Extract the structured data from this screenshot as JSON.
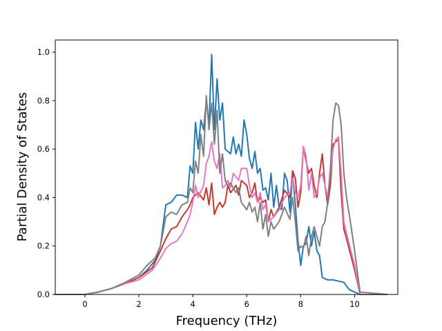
{
  "chart_data": {
    "type": "line",
    "title": "",
    "xlabel": "Frequency (THz)",
    "ylabel": "Partial Density of States",
    "xlim": [
      -1.1,
      11.6
    ],
    "ylim": [
      0,
      1.05
    ],
    "x_ticks": [
      0,
      2,
      4,
      6,
      8,
      10
    ],
    "y_ticks": [
      0.0,
      0.2,
      0.4,
      0.6,
      0.8,
      1.0
    ],
    "x_tick_labels": [
      "0",
      "2",
      "4",
      "6",
      "8",
      "10"
    ],
    "y_tick_labels": [
      "0.0",
      "0.2",
      "0.4",
      "0.6",
      "0.8",
      "1.0"
    ],
    "grid": false,
    "legend": "none",
    "series": [
      {
        "color": "#1f77b4",
        "points": [
          [
            -1.1,
            0
          ],
          [
            0,
            0
          ],
          [
            0.5,
            0.01
          ],
          [
            1,
            0.025
          ],
          [
            1.5,
            0.045
          ],
          [
            2,
            0.07
          ],
          [
            2.3,
            0.1
          ],
          [
            2.6,
            0.14
          ],
          [
            2.8,
            0.2
          ],
          [
            3.0,
            0.37
          ],
          [
            3.2,
            0.38
          ],
          [
            3.4,
            0.41
          ],
          [
            3.6,
            0.41
          ],
          [
            3.8,
            0.4
          ],
          [
            3.9,
            0.53
          ],
          [
            4.0,
            0.5
          ],
          [
            4.1,
            0.71
          ],
          [
            4.2,
            0.6
          ],
          [
            4.3,
            0.72
          ],
          [
            4.4,
            0.68
          ],
          [
            4.5,
            0.8
          ],
          [
            4.6,
            0.7
          ],
          [
            4.7,
            0.99
          ],
          [
            4.8,
            0.68
          ],
          [
            4.9,
            0.89
          ],
          [
            5.0,
            0.72
          ],
          [
            5.1,
            0.79
          ],
          [
            5.2,
            0.6
          ],
          [
            5.4,
            0.58
          ],
          [
            5.5,
            0.65
          ],
          [
            5.6,
            0.58
          ],
          [
            5.7,
            0.62
          ],
          [
            5.8,
            0.57
          ],
          [
            5.9,
            0.72
          ],
          [
            6.0,
            0.66
          ],
          [
            6.1,
            0.56
          ],
          [
            6.2,
            0.52
          ],
          [
            6.3,
            0.59
          ],
          [
            6.4,
            0.5
          ],
          [
            6.5,
            0.52
          ],
          [
            6.6,
            0.43
          ],
          [
            6.7,
            0.44
          ],
          [
            6.8,
            0.39
          ],
          [
            6.9,
            0.5
          ],
          [
            7.0,
            0.36
          ],
          [
            7.1,
            0.45
          ],
          [
            7.2,
            0.36
          ],
          [
            7.3,
            0.35
          ],
          [
            7.4,
            0.5
          ],
          [
            7.5,
            0.47
          ],
          [
            7.6,
            0.34
          ],
          [
            7.7,
            0.5
          ],
          [
            7.8,
            0.37
          ],
          [
            7.9,
            0.22
          ],
          [
            8.0,
            0.12
          ],
          [
            8.1,
            0.2
          ],
          [
            8.2,
            0.21
          ],
          [
            8.3,
            0.28
          ],
          [
            8.4,
            0.2
          ],
          [
            8.5,
            0.26
          ],
          [
            8.6,
            0.18
          ],
          [
            8.7,
            0.16
          ],
          [
            8.8,
            0.07
          ],
          [
            9.0,
            0.06
          ],
          [
            9.2,
            0.06
          ],
          [
            9.4,
            0.055
          ],
          [
            9.6,
            0.05
          ],
          [
            9.8,
            0.02
          ],
          [
            10.0,
            0.01
          ],
          [
            10.2,
            0.0
          ],
          [
            11.2,
            0
          ]
        ]
      },
      {
        "color": "#c0392b",
        "points": [
          [
            -1.1,
            0
          ],
          [
            0,
            0
          ],
          [
            0.5,
            0.01
          ],
          [
            1,
            0.025
          ],
          [
            1.5,
            0.045
          ],
          [
            2,
            0.07
          ],
          [
            2.5,
            0.11
          ],
          [
            2.8,
            0.18
          ],
          [
            3.0,
            0.23
          ],
          [
            3.2,
            0.27
          ],
          [
            3.4,
            0.28
          ],
          [
            3.6,
            0.32
          ],
          [
            3.8,
            0.35
          ],
          [
            3.9,
            0.37
          ],
          [
            4.0,
            0.4
          ],
          [
            4.2,
            0.42
          ],
          [
            4.4,
            0.39
          ],
          [
            4.5,
            0.44
          ],
          [
            4.6,
            0.37
          ],
          [
            4.7,
            0.46
          ],
          [
            4.8,
            0.33
          ],
          [
            4.9,
            0.36
          ],
          [
            5.0,
            0.38
          ],
          [
            5.1,
            0.36
          ],
          [
            5.2,
            0.38
          ],
          [
            5.3,
            0.45
          ],
          [
            5.4,
            0.42
          ],
          [
            5.6,
            0.45
          ],
          [
            5.7,
            0.41
          ],
          [
            5.8,
            0.47
          ],
          [
            6.0,
            0.45
          ],
          [
            6.1,
            0.4
          ],
          [
            6.2,
            0.42
          ],
          [
            6.3,
            0.46
          ],
          [
            6.4,
            0.38
          ],
          [
            6.5,
            0.4
          ],
          [
            6.6,
            0.38
          ],
          [
            6.7,
            0.39
          ],
          [
            6.8,
            0.3
          ],
          [
            6.9,
            0.35
          ],
          [
            7.0,
            0.32
          ],
          [
            7.2,
            0.36
          ],
          [
            7.4,
            0.43
          ],
          [
            7.6,
            0.4
          ],
          [
            7.7,
            0.51
          ],
          [
            7.8,
            0.48
          ],
          [
            7.9,
            0.36
          ],
          [
            8.0,
            0.42
          ],
          [
            8.1,
            0.61
          ],
          [
            8.2,
            0.55
          ],
          [
            8.3,
            0.5
          ],
          [
            8.4,
            0.52
          ],
          [
            8.5,
            0.45
          ],
          [
            8.6,
            0.4
          ],
          [
            8.7,
            0.5
          ],
          [
            8.8,
            0.58
          ],
          [
            8.9,
            0.45
          ],
          [
            9.0,
            0.37
          ],
          [
            9.1,
            0.45
          ],
          [
            9.2,
            0.62
          ],
          [
            9.3,
            0.63
          ],
          [
            9.4,
            0.64
          ],
          [
            9.5,
            0.42
          ],
          [
            9.6,
            0.27
          ],
          [
            9.7,
            0.23
          ],
          [
            10.0,
            0.1
          ],
          [
            10.2,
            0.0
          ],
          [
            11.2,
            0
          ]
        ]
      },
      {
        "color": "#e377c2",
        "points": [
          [
            -1.1,
            0
          ],
          [
            0,
            0
          ],
          [
            0.5,
            0.01
          ],
          [
            1,
            0.025
          ],
          [
            1.5,
            0.045
          ],
          [
            2,
            0.06
          ],
          [
            2.5,
            0.1
          ],
          [
            2.8,
            0.15
          ],
          [
            3.0,
            0.19
          ],
          [
            3.2,
            0.21
          ],
          [
            3.4,
            0.22
          ],
          [
            3.6,
            0.25
          ],
          [
            3.8,
            0.3
          ],
          [
            3.9,
            0.33
          ],
          [
            4.0,
            0.38
          ],
          [
            4.1,
            0.45
          ],
          [
            4.2,
            0.4
          ],
          [
            4.4,
            0.45
          ],
          [
            4.5,
            0.54
          ],
          [
            4.6,
            0.57
          ],
          [
            4.7,
            0.63
          ],
          [
            4.8,
            0.55
          ],
          [
            4.9,
            0.52
          ],
          [
            5.0,
            0.58
          ],
          [
            5.1,
            0.44
          ],
          [
            5.2,
            0.45
          ],
          [
            5.3,
            0.47
          ],
          [
            5.4,
            0.44
          ],
          [
            5.5,
            0.5
          ],
          [
            5.7,
            0.47
          ],
          [
            5.8,
            0.52
          ],
          [
            6.0,
            0.52
          ],
          [
            6.1,
            0.45
          ],
          [
            6.2,
            0.4
          ],
          [
            6.3,
            0.42
          ],
          [
            6.4,
            0.38
          ],
          [
            6.5,
            0.42
          ],
          [
            6.6,
            0.35
          ],
          [
            6.7,
            0.37
          ],
          [
            6.8,
            0.3
          ],
          [
            7.0,
            0.32
          ],
          [
            7.2,
            0.35
          ],
          [
            7.4,
            0.4
          ],
          [
            7.6,
            0.42
          ],
          [
            7.7,
            0.48
          ],
          [
            7.8,
            0.42
          ],
          [
            7.9,
            0.4
          ],
          [
            8.0,
            0.45
          ],
          [
            8.1,
            0.61
          ],
          [
            8.2,
            0.57
          ],
          [
            8.3,
            0.43
          ],
          [
            8.4,
            0.5
          ],
          [
            8.5,
            0.4
          ],
          [
            8.6,
            0.42
          ],
          [
            8.7,
            0.48
          ],
          [
            8.8,
            0.5
          ],
          [
            8.9,
            0.45
          ],
          [
            9.0,
            0.4
          ],
          [
            9.1,
            0.5
          ],
          [
            9.2,
            0.6
          ],
          [
            9.3,
            0.64
          ],
          [
            9.4,
            0.65
          ],
          [
            9.5,
            0.5
          ],
          [
            9.6,
            0.3
          ],
          [
            9.7,
            0.25
          ],
          [
            10.0,
            0.12
          ],
          [
            10.2,
            0.0
          ],
          [
            11.2,
            0
          ]
        ]
      },
      {
        "color": "#7f7f7f",
        "points": [
          [
            -1.1,
            0
          ],
          [
            0,
            0
          ],
          [
            0.5,
            0.01
          ],
          [
            1,
            0.025
          ],
          [
            1.5,
            0.05
          ],
          [
            2,
            0.08
          ],
          [
            2.3,
            0.12
          ],
          [
            2.6,
            0.15
          ],
          [
            2.8,
            0.2
          ],
          [
            3.0,
            0.32
          ],
          [
            3.2,
            0.34
          ],
          [
            3.4,
            0.33
          ],
          [
            3.6,
            0.37
          ],
          [
            3.8,
            0.38
          ],
          [
            3.9,
            0.44
          ],
          [
            4.0,
            0.42
          ],
          [
            4.1,
            0.55
          ],
          [
            4.2,
            0.5
          ],
          [
            4.3,
            0.66
          ],
          [
            4.4,
            0.57
          ],
          [
            4.5,
            0.82
          ],
          [
            4.6,
            0.68
          ],
          [
            4.7,
            0.79
          ],
          [
            4.8,
            0.62
          ],
          [
            4.9,
            0.76
          ],
          [
            5.0,
            0.5
          ],
          [
            5.1,
            0.58
          ],
          [
            5.2,
            0.47
          ],
          [
            5.3,
            0.45
          ],
          [
            5.4,
            0.46
          ],
          [
            5.6,
            0.42
          ],
          [
            5.7,
            0.44
          ],
          [
            5.8,
            0.38
          ],
          [
            6.0,
            0.35
          ],
          [
            6.1,
            0.38
          ],
          [
            6.2,
            0.34
          ],
          [
            6.3,
            0.36
          ],
          [
            6.4,
            0.3
          ],
          [
            6.5,
            0.38
          ],
          [
            6.6,
            0.27
          ],
          [
            6.7,
            0.33
          ],
          [
            6.8,
            0.24
          ],
          [
            6.9,
            0.3
          ],
          [
            7.0,
            0.27
          ],
          [
            7.2,
            0.3
          ],
          [
            7.4,
            0.36
          ],
          [
            7.6,
            0.31
          ],
          [
            7.7,
            0.4
          ],
          [
            7.8,
            0.3
          ],
          [
            7.9,
            0.18
          ],
          [
            8.0,
            0.2
          ],
          [
            8.1,
            0.19
          ],
          [
            8.2,
            0.24
          ],
          [
            8.3,
            0.16
          ],
          [
            8.4,
            0.24
          ],
          [
            8.5,
            0.28
          ],
          [
            8.6,
            0.24
          ],
          [
            8.7,
            0.2
          ],
          [
            8.8,
            0.28
          ],
          [
            8.9,
            0.3
          ],
          [
            9.0,
            0.38
          ],
          [
            9.1,
            0.52
          ],
          [
            9.2,
            0.72
          ],
          [
            9.3,
            0.79
          ],
          [
            9.4,
            0.78
          ],
          [
            9.5,
            0.7
          ],
          [
            9.6,
            0.5
          ],
          [
            9.7,
            0.4
          ],
          [
            9.8,
            0.33
          ],
          [
            10.0,
            0.18
          ],
          [
            10.2,
            0.01
          ],
          [
            11.2,
            0
          ]
        ]
      }
    ]
  }
}
